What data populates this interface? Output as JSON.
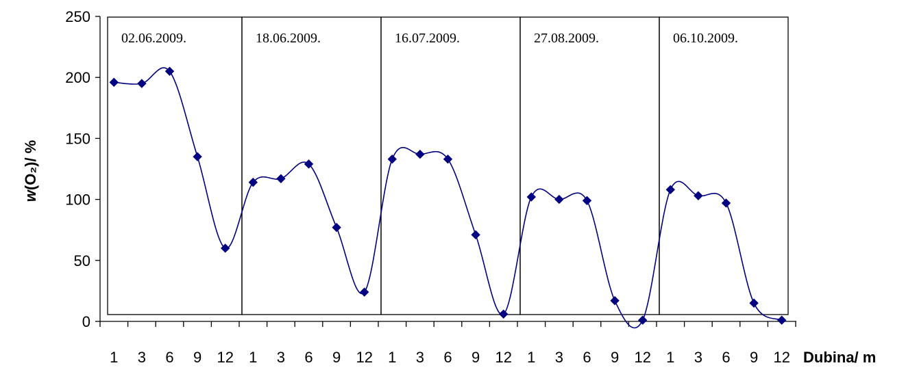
{
  "chart_data": {
    "type": "line",
    "title": "",
    "ylabel_main": "w",
    "ylabel_rest": "(O₂)/ %",
    "xlabel": "Dubina/ m",
    "ylim": [
      0,
      250
    ],
    "y_ticks": [
      0,
      50,
      100,
      150,
      200,
      250
    ],
    "x_tick_labels": [
      "1",
      "3",
      "6",
      "9",
      "12"
    ],
    "grid": false,
    "legend": "none",
    "marker_color": "#000080",
    "line_color": "#000080",
    "series": [
      {
        "date": "02.06.2009.",
        "values": [
          196,
          195,
          205,
          135,
          60
        ]
      },
      {
        "date": "18.06.2009.",
        "values": [
          114,
          117,
          129,
          77,
          24
        ]
      },
      {
        "date": "16.07.2009.",
        "values": [
          133,
          137,
          133,
          71,
          6
        ]
      },
      {
        "date": "27.08.2009.",
        "values": [
          102,
          100,
          99,
          17,
          1
        ]
      },
      {
        "date": "06.10.2009.",
        "values": [
          108,
          103,
          97,
          15,
          1
        ]
      }
    ]
  }
}
